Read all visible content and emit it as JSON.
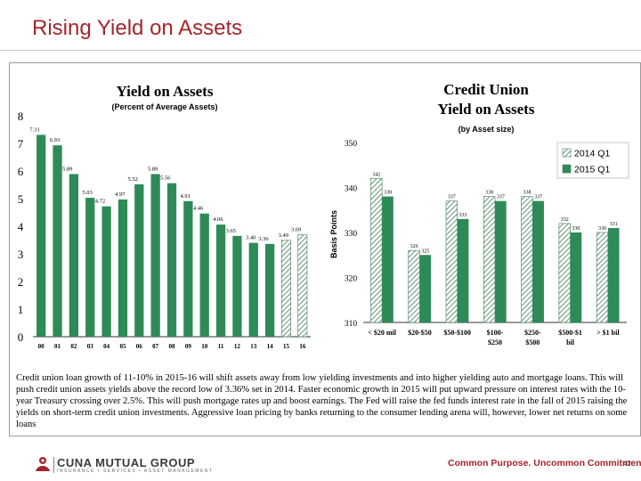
{
  "slide": {
    "title": "Rising Yield on Assets",
    "caption": "Credit union loan growth of 11-10% in 2015-16 will shift assets away from low yielding investments and into higher yielding auto and mortgage loans.  This will push credit union assets yields above the record low of 3.36% set in 2014. Faster economic growth in 2015 will put upward pressure on interest rates with the 10-year Treasury crossing over 2.5%.  This will push mortgage rates up and boost earnings.  The Fed will raise the fed funds interest rate in the fall of 2015 raising the yields on short-term credit union investments.  Aggressive loan pricing by banks returning to the consumer lending arena will, however, lower net returns on some loans",
    "footer": {
      "logo_text": "CUNA MUTUAL GROUP",
      "logo_subtext": "INSURANCE • SERVICES • ASSET MANAGEMENT",
      "tagline": "Common Purpose. Uncommon Commitment.",
      "page_number": "42"
    },
    "colors": {
      "title": "#a4262c",
      "bar": "#2e8b57",
      "tagline": "#a4262c"
    }
  },
  "chart_data": [
    {
      "type": "bar",
      "title": "Yield on Assets",
      "subtitle": "(Percent of Average Assets)",
      "categories": [
        "00",
        "01",
        "02",
        "03",
        "04",
        "05",
        "06",
        "07",
        "08",
        "09",
        "10",
        "11",
        "12",
        "13",
        "14",
        "15",
        "16"
      ],
      "values": [
        7.31,
        6.93,
        5.89,
        5.03,
        4.72,
        4.97,
        5.52,
        5.89,
        5.56,
        4.91,
        4.46,
        4.06,
        3.65,
        3.4,
        3.36,
        3.49,
        3.69
      ],
      "value_labels": [
        "7.31",
        "6.93",
        "5.89",
        "5.03",
        "4.72",
        "4.97",
        "5.52",
        "5.89",
        "5.56",
        "4.91",
        "4.46",
        "4.06",
        "3.65",
        "3.40",
        "3.36",
        "3.49",
        "3.69"
      ],
      "forecast_categories": [
        "15",
        "16"
      ],
      "ylim": [
        0,
        8
      ],
      "yticks": [
        "0",
        "1",
        "2",
        "3",
        "4",
        "5",
        "6",
        "7",
        "8"
      ],
      "grid": false,
      "xlabel": "",
      "ylabel": ""
    },
    {
      "type": "bar",
      "title_lines": [
        "Credit Union",
        "Yield on Assets"
      ],
      "subtitle": "(by Asset size)",
      "ylabel": "Basis Points",
      "categories": [
        [
          "< $20 mil"
        ],
        [
          "$20-$50"
        ],
        [
          "$50-$100"
        ],
        [
          "$100-",
          "$250"
        ],
        [
          "$250-",
          "$500"
        ],
        [
          "$500-$1",
          "bil"
        ],
        [
          "> $1 bil"
        ]
      ],
      "series": [
        {
          "name": "2014 Q1",
          "pattern": "hatched",
          "values": [
            342,
            326,
            337,
            338,
            338,
            332,
            330
          ],
          "labels": [
            "342",
            "326",
            "337",
            "338",
            "338",
            "332",
            "330"
          ]
        },
        {
          "name": "2015 Q1",
          "pattern": "solid",
          "values": [
            338,
            325,
            333,
            337,
            337,
            330,
            331
          ],
          "labels": [
            "338",
            "325",
            "333",
            "337",
            "337",
            "330",
            "331"
          ]
        }
      ],
      "ylim": [
        310,
        350
      ],
      "yticks": [
        "310",
        "320",
        "330",
        "340",
        "350"
      ],
      "legend": "top-right",
      "grid": false
    }
  ]
}
